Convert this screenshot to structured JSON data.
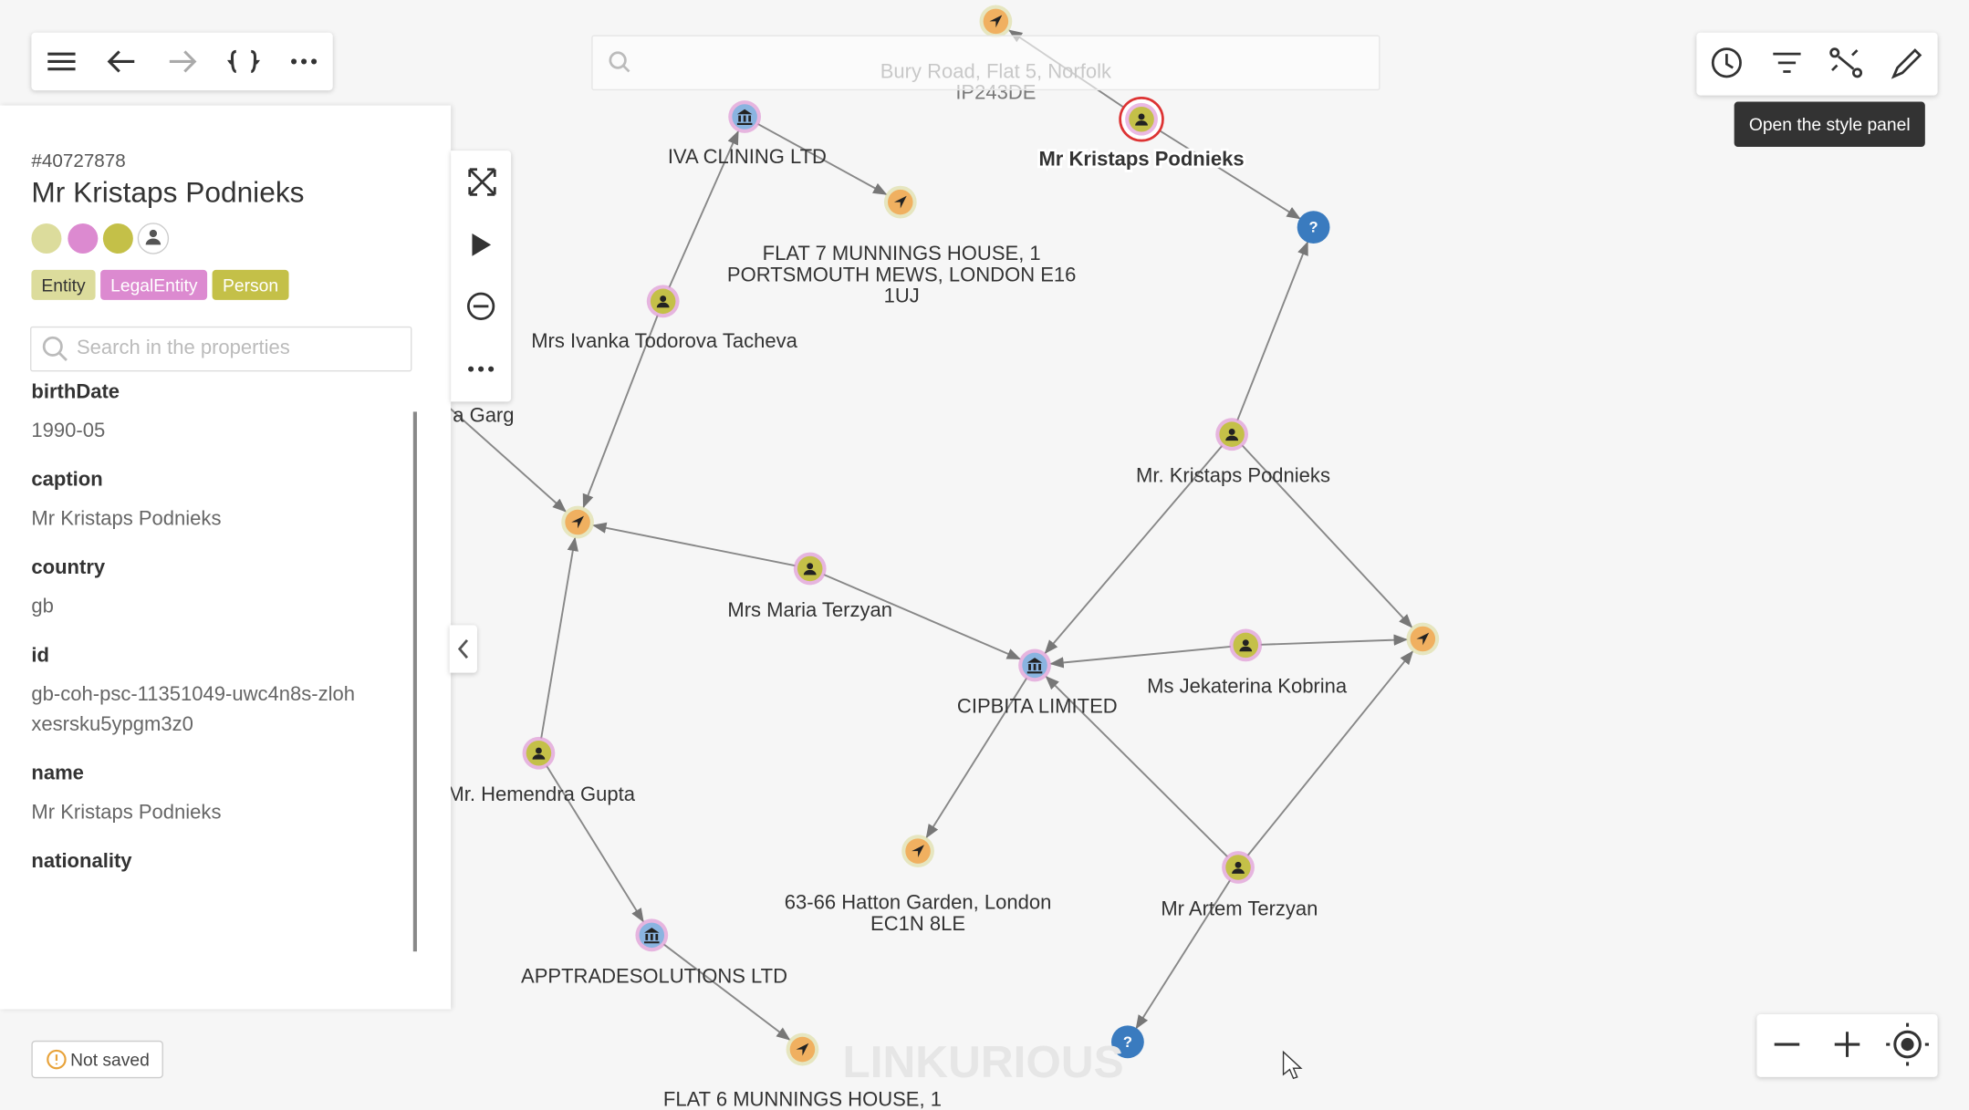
{
  "search": {
    "placeholder": ""
  },
  "tooltip": "Open the style panel",
  "panel": {
    "ref": "#40727878",
    "title": "Mr Kristaps Podnieks",
    "tags": [
      "Entity",
      "LegalEntity",
      "Person"
    ],
    "search_placeholder": "Search in the properties",
    "properties": [
      {
        "key": "birthDate",
        "value": "1990-05"
      },
      {
        "key": "caption",
        "value": "Mr Kristaps Podnieks"
      },
      {
        "key": "country",
        "value": "gb"
      },
      {
        "key": "id",
        "value": "gb-coh-psc-11351049-uwc4n8s-zlohxesrsku5ypgm3z0"
      },
      {
        "key": "name",
        "value": "Mr Kristaps Podnieks"
      },
      {
        "key": "nationality"
      }
    ]
  },
  "status": "Not saved",
  "watermark": "LINKURIOUS",
  "nodes": [
    {
      "label": [
        "Bury Road, Flat 5, Norfolk",
        "IP243DE"
      ]
    },
    {
      "label": [
        "Mr Kristaps Podnieks"
      ]
    },
    {
      "label": []
    },
    {
      "label": [
        "IVA CLINING LTD"
      ]
    },
    {
      "label": [
        "FLAT 7 MUNNINGS HOUSE, 1",
        "PORTSMOUTH MEWS, LONDON E16",
        "1UJ"
      ]
    },
    {
      "label": [
        "Mrs Ivanka Todorova Tacheva"
      ]
    },
    {
      "label": [
        "a Garg"
      ]
    },
    {
      "label": []
    },
    {
      "label": [
        "Mrs Maria Terzyan"
      ]
    },
    {
      "label": [
        "Mr. Kristaps Podnieks"
      ]
    },
    {
      "label": [
        "CIPBITA LIMITED"
      ]
    },
    {
      "label": [
        "Ms Jekaterina Kobrina"
      ]
    },
    {
      "label": []
    },
    {
      "label": [
        "Mr. Hemendra Gupta"
      ]
    },
    {
      "label": [
        "63-66 Hatton Garden, London",
        "EC1N 8LE"
      ]
    },
    {
      "label": [
        "Mr Artem Terzyan"
      ]
    },
    {
      "label": [
        "APPTRADESOLUTIONS LTD"
      ]
    },
    {
      "label": [
        "FLAT 6 MUNNINGS HOUSE, 1"
      ]
    },
    {
      "label": []
    }
  ]
}
